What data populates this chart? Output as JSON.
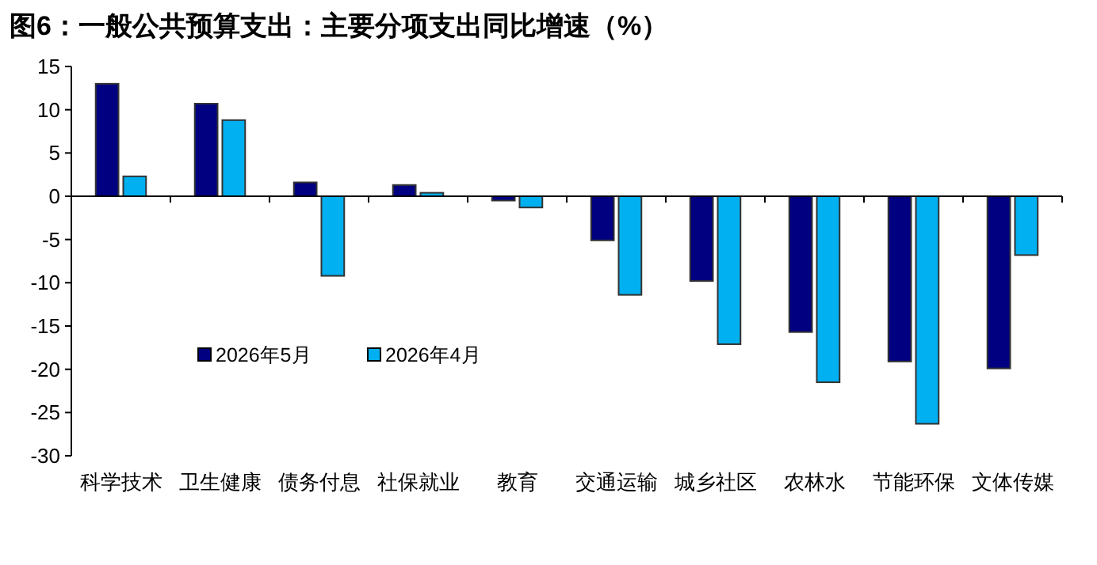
{
  "chart_data": {
    "type": "bar",
    "title": "图6：一般公共预算支出：主要分项支出同比增速（%）",
    "categories": [
      "科学技术",
      "卫生健康",
      "债务付息",
      "社保就业",
      "教育",
      "交通运输",
      "城乡社区",
      "农林水",
      "节能环保",
      "文体传媒"
    ],
    "series": [
      {
        "name": "2026年5月",
        "color": "#000080",
        "values": [
          13.0,
          10.7,
          1.6,
          1.3,
          -0.5,
          -5.1,
          -9.8,
          -15.7,
          -19.1,
          -19.9
        ]
      },
      {
        "name": "2026年4月",
        "color": "#00b0f0",
        "values": [
          2.3,
          8.8,
          -9.2,
          0.4,
          -1.3,
          -11.4,
          -17.1,
          -21.5,
          -26.3,
          -6.8
        ]
      }
    ],
    "ylim": [
      -30,
      15
    ],
    "yticks": [
      -30,
      -25,
      -20,
      -15,
      -10,
      -5,
      0,
      5,
      10,
      15
    ],
    "legend": "bottom left"
  }
}
